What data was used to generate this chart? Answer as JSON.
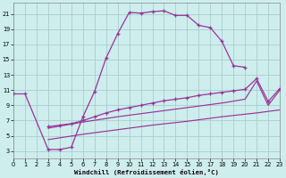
{
  "xlabel": "Windchill (Refroidissement éolien,°C)",
  "bg_color": "#cdeeed",
  "grid_color": "#aacccc",
  "line_color": "#993399",
  "xlim": [
    0,
    23
  ],
  "ylim": [
    2,
    22.5
  ],
  "yticks": [
    3,
    5,
    7,
    9,
    11,
    13,
    15,
    17,
    19,
    21
  ],
  "xticks": [
    0,
    1,
    2,
    3,
    4,
    5,
    6,
    7,
    8,
    9,
    10,
    11,
    12,
    13,
    14,
    15,
    16,
    17,
    18,
    19,
    20,
    21,
    22,
    23
  ],
  "curve1_x": [
    0,
    1,
    3,
    4,
    5,
    6,
    7,
    8,
    9,
    10,
    11,
    12,
    13,
    14,
    15,
    16,
    17,
    18,
    19,
    20
  ],
  "curve1_y": [
    10.5,
    10.5,
    3.2,
    3.2,
    3.5,
    7.5,
    10.8,
    15.2,
    18.4,
    21.2,
    21.1,
    21.3,
    21.4,
    20.8,
    20.8,
    19.5,
    19.2,
    17.4,
    14.2,
    14.0
  ],
  "curve2_x": [
    3,
    4,
    5,
    6,
    7,
    8,
    9,
    10,
    11,
    12,
    13,
    14,
    15,
    16,
    17,
    18,
    19,
    20,
    21,
    22,
    23
  ],
  "curve2_y": [
    6.2,
    6.4,
    6.6,
    7.0,
    7.5,
    8.0,
    8.4,
    8.7,
    9.0,
    9.3,
    9.6,
    9.8,
    10.0,
    10.3,
    10.5,
    10.7,
    10.9,
    11.1,
    12.5,
    9.5,
    11.2
  ],
  "curve3_x": [
    3,
    6,
    9,
    12,
    15,
    18,
    20,
    21,
    22,
    23
  ],
  "curve3_y": [
    6.0,
    6.8,
    7.5,
    8.1,
    8.7,
    9.3,
    9.8,
    12.2,
    9.0,
    11.0
  ],
  "curve4_x": [
    3,
    6,
    9,
    12,
    15,
    18,
    21,
    23
  ],
  "curve4_y": [
    4.5,
    5.2,
    5.8,
    6.4,
    6.9,
    7.5,
    8.0,
    8.4
  ]
}
